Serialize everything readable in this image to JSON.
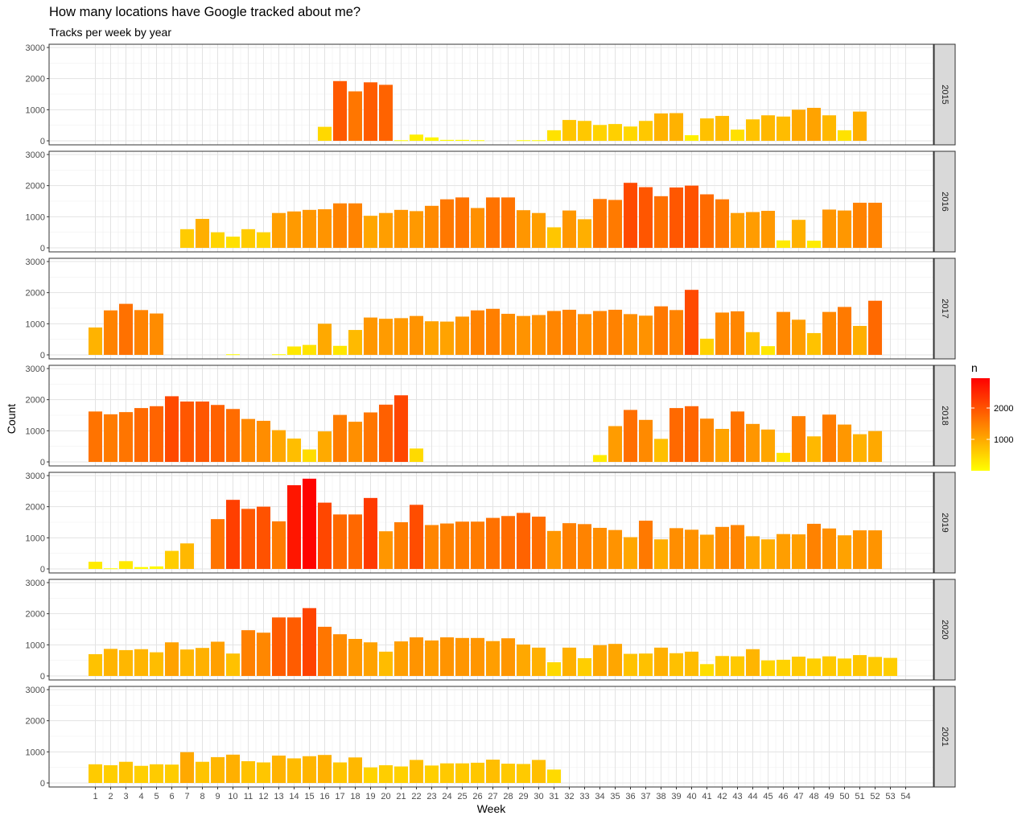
{
  "chart_data": {
    "type": "bar",
    "title": "How many locations have Google tracked about me?",
    "subtitle": "Tracks per week by year",
    "xlabel": "Week",
    "ylabel": "Count",
    "ylim": [
      0,
      3000
    ],
    "yticks": [
      "0",
      "1000",
      "2000",
      "3000"
    ],
    "weeks": [
      "1",
      "2",
      "3",
      "4",
      "5",
      "6",
      "7",
      "8",
      "9",
      "10",
      "11",
      "12",
      "13",
      "14",
      "15",
      "16",
      "17",
      "18",
      "19",
      "20",
      "21",
      "22",
      "23",
      "24",
      "25",
      "26",
      "27",
      "28",
      "29",
      "30",
      "31",
      "32",
      "33",
      "34",
      "35",
      "36",
      "37",
      "38",
      "39",
      "40",
      "41",
      "42",
      "43",
      "44",
      "45",
      "46",
      "47",
      "48",
      "49",
      "50",
      "51",
      "52",
      "53",
      "54"
    ],
    "grid": true,
    "legend": {
      "title": "n",
      "position": "right",
      "ticks": [
        "1000",
        "2000"
      ],
      "color_low": "#FFFF00",
      "color_high": "#FF0000",
      "range": [
        0,
        2950
      ]
    },
    "series": [
      {
        "name": "2015",
        "values": [
          null,
          null,
          null,
          null,
          null,
          null,
          null,
          null,
          null,
          null,
          null,
          null,
          null,
          null,
          null,
          450,
          1920,
          1590,
          1880,
          1800,
          20,
          200,
          110,
          30,
          30,
          20,
          null,
          null,
          20,
          20,
          340,
          670,
          640,
          510,
          540,
          460,
          640,
          880,
          890,
          180,
          720,
          800,
          360,
          690,
          820,
          780,
          1000,
          1060,
          820,
          340,
          940,
          null,
          null,
          null
        ]
      },
      {
        "name": "2016",
        "values": [
          null,
          null,
          null,
          null,
          null,
          null,
          600,
          930,
          500,
          360,
          600,
          500,
          1120,
          1170,
          1220,
          1240,
          1430,
          1430,
          1030,
          1120,
          1220,
          1180,
          1350,
          1560,
          1620,
          1280,
          1620,
          1620,
          1210,
          1120,
          660,
          1200,
          920,
          1570,
          1540,
          2090,
          1950,
          1660,
          1940,
          2000,
          1720,
          1560,
          1120,
          1150,
          1190,
          240,
          900,
          230,
          1230,
          1200,
          1450,
          1450,
          null,
          null
        ]
      },
      {
        "name": "2017",
        "values": [
          880,
          1430,
          1640,
          1440,
          1330,
          null,
          null,
          null,
          null,
          20,
          null,
          null,
          20,
          270,
          320,
          1000,
          290,
          800,
          1200,
          1160,
          1180,
          1250,
          1080,
          1070,
          1230,
          1430,
          1480,
          1320,
          1250,
          1280,
          1410,
          1450,
          1310,
          1410,
          1450,
          1310,
          1260,
          1560,
          1440,
          2090,
          520,
          1360,
          1400,
          730,
          280,
          1380,
          1130,
          700,
          1380,
          1540,
          930,
          1740,
          null,
          null
        ]
      },
      {
        "name": "2018",
        "values": [
          1620,
          1530,
          1600,
          1730,
          1790,
          2110,
          1940,
          1940,
          1830,
          1700,
          1380,
          1320,
          1020,
          750,
          400,
          980,
          1510,
          1290,
          1590,
          1840,
          2140,
          430,
          null,
          null,
          null,
          null,
          null,
          null,
          null,
          null,
          null,
          null,
          null,
          220,
          1150,
          1670,
          1350,
          740,
          1730,
          1790,
          1390,
          1060,
          1620,
          1220,
          1040,
          290,
          1470,
          820,
          1520,
          1200,
          890,
          990,
          null,
          null
        ]
      },
      {
        "name": "2019",
        "values": [
          230,
          20,
          250,
          60,
          80,
          580,
          820,
          null,
          1600,
          2220,
          1930,
          2000,
          1530,
          2690,
          2900,
          2130,
          1750,
          1750,
          2280,
          1210,
          1500,
          2060,
          1410,
          1460,
          1520,
          1520,
          1640,
          1700,
          1800,
          1680,
          1220,
          1470,
          1440,
          1320,
          1250,
          1020,
          1550,
          950,
          1310,
          1260,
          1100,
          1350,
          1410,
          1050,
          950,
          1120,
          1110,
          1450,
          1300,
          1080,
          1240,
          1240,
          null,
          null
        ]
      },
      {
        "name": "2020",
        "values": [
          700,
          870,
          830,
          860,
          760,
          1080,
          850,
          900,
          1100,
          720,
          1470,
          1390,
          1880,
          1880,
          2180,
          1580,
          1340,
          1190,
          1080,
          780,
          1110,
          1240,
          1140,
          1240,
          1220,
          1220,
          1120,
          1210,
          1010,
          910,
          440,
          910,
          570,
          990,
          1030,
          710,
          720,
          910,
          730,
          780,
          380,
          640,
          630,
          860,
          500,
          520,
          620,
          560,
          630,
          560,
          670,
          610,
          580,
          null
        ]
      },
      {
        "name": "2021",
        "values": [
          600,
          570,
          680,
          550,
          600,
          590,
          990,
          680,
          830,
          910,
          700,
          660,
          880,
          790,
          860,
          900,
          660,
          820,
          500,
          570,
          530,
          740,
          560,
          630,
          630,
          650,
          750,
          620,
          610,
          740,
          430,
          null,
          null,
          null,
          null,
          null,
          null,
          null,
          null,
          null,
          null,
          null,
          null,
          null,
          null,
          null,
          null,
          null,
          null,
          null,
          null,
          null,
          null,
          null
        ]
      }
    ]
  }
}
